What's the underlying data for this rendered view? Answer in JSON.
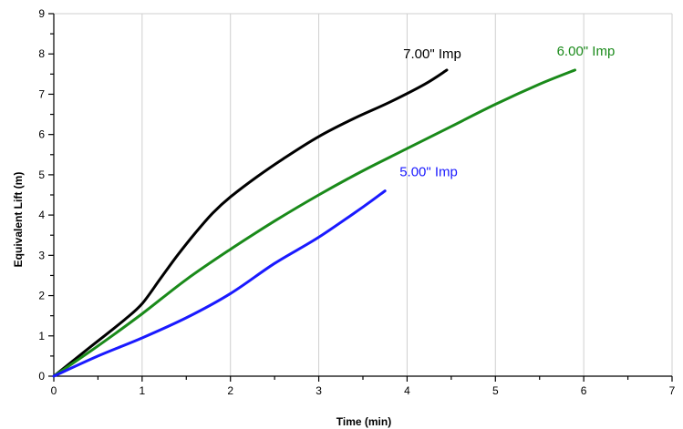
{
  "chart_data": {
    "type": "line",
    "title": "",
    "xlabel": "Time (min)",
    "ylabel": "Equivalent Lift (m)",
    "xlim": [
      0,
      7
    ],
    "ylim": [
      0,
      9
    ],
    "xticks": [
      0,
      1,
      2,
      3,
      4,
      5,
      6,
      7
    ],
    "yticks": [
      0,
      1,
      2,
      3,
      4,
      5,
      6,
      7,
      8,
      9
    ],
    "grid": "vertical",
    "legend": "none",
    "series": [
      {
        "name": "7.00\" Imp",
        "color": "#000000",
        "x": [
          0,
          0.4,
          0.8,
          1.0,
          1.2,
          1.4,
          1.6,
          1.8,
          2.0,
          2.3,
          2.6,
          3.0,
          3.4,
          3.8,
          4.2,
          4.45
        ],
        "y": [
          0,
          0.7,
          1.4,
          1.8,
          2.4,
          3.0,
          3.55,
          4.05,
          4.45,
          4.95,
          5.4,
          5.95,
          6.4,
          6.8,
          7.25,
          7.6
        ]
      },
      {
        "name": "6.00\" Imp",
        "color": "#1a8a1a",
        "x": [
          0,
          0.5,
          1.0,
          1.5,
          2.0,
          2.5,
          3.0,
          3.5,
          4.0,
          4.5,
          5.0,
          5.5,
          5.9
        ],
        "y": [
          0,
          0.75,
          1.55,
          2.4,
          3.15,
          3.85,
          4.5,
          5.1,
          5.65,
          6.2,
          6.75,
          7.25,
          7.6
        ]
      },
      {
        "name": "5.00\" Imp",
        "color": "#1a1aff",
        "x": [
          0,
          0.5,
          1.0,
          1.5,
          2.0,
          2.5,
          3.0,
          3.5,
          3.75
        ],
        "y": [
          0,
          0.5,
          0.95,
          1.45,
          2.05,
          2.8,
          3.45,
          4.2,
          4.6
        ]
      }
    ]
  }
}
